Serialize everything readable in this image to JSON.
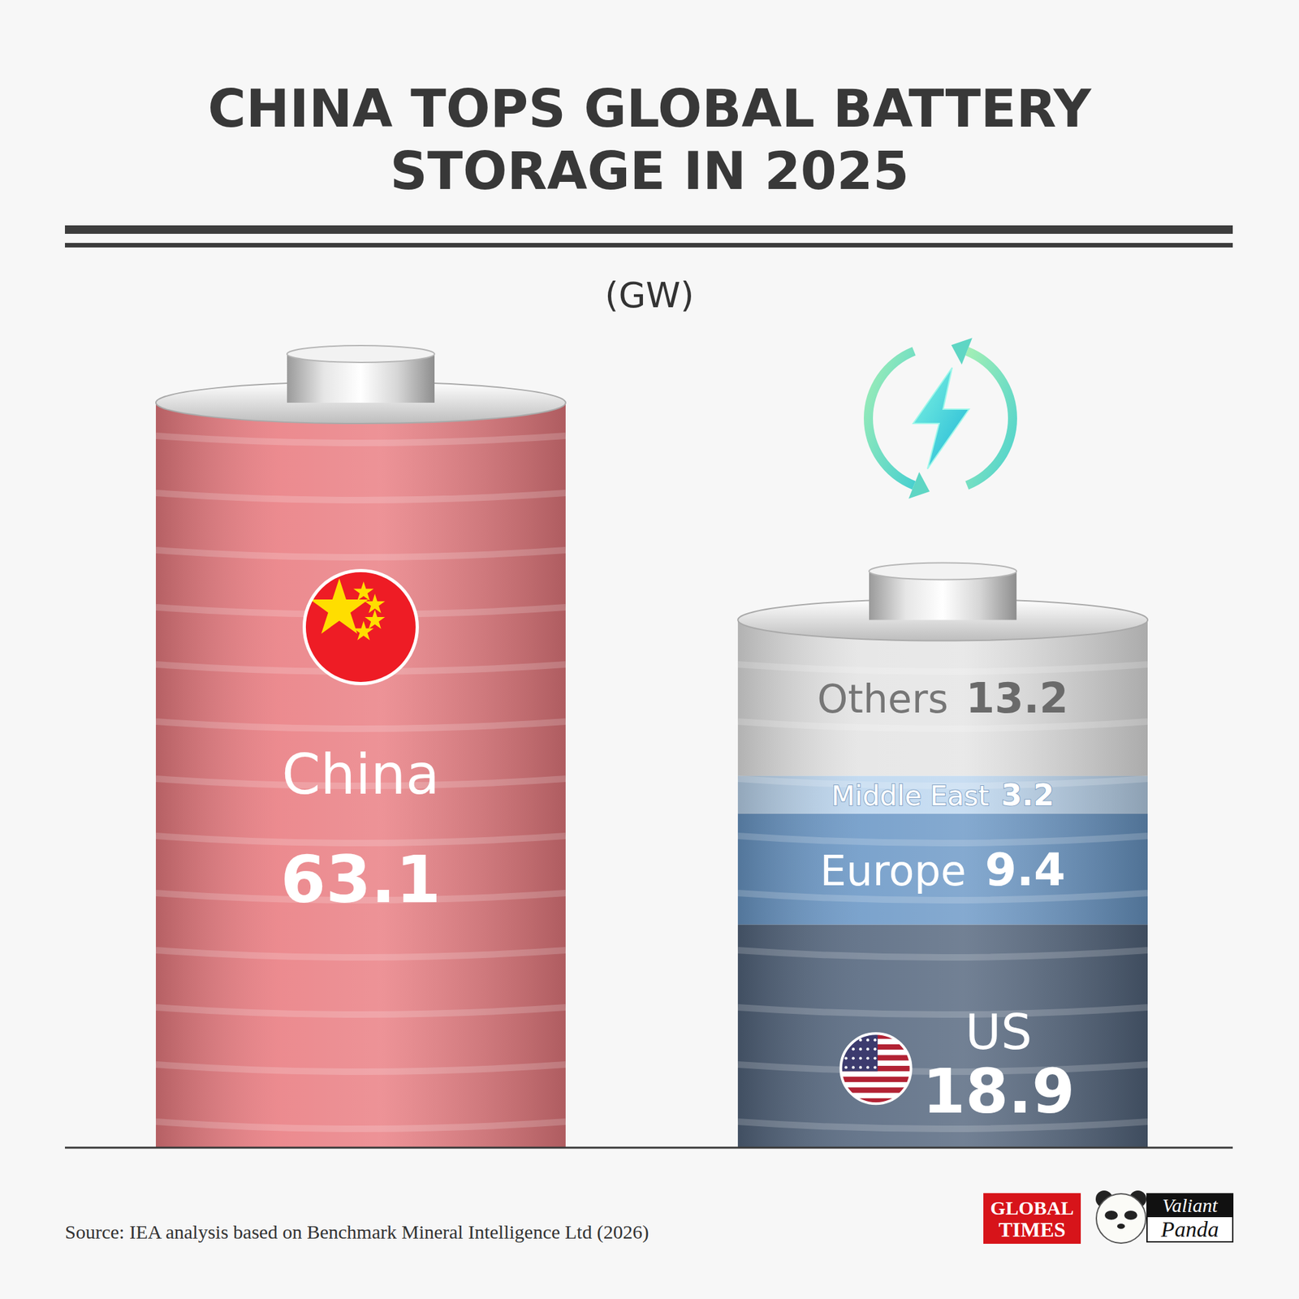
{
  "chart_data": {
    "type": "bar",
    "title": "CHINA TOPS GLOBAL BATTERY STORAGE IN 2025",
    "subtitle": "(GW)",
    "categories": [
      null,
      null
    ],
    "series": [
      {
        "name": "China",
        "color": "#e97b80",
        "values": [
          63.1,
          null
        ]
      },
      {
        "name": "US",
        "color": "#53657d",
        "values": [
          null,
          18.9
        ]
      },
      {
        "name": "Europe",
        "color": "#6a97c6",
        "values": [
          null,
          9.4
        ]
      },
      {
        "name": "Middle East",
        "color": "#bcd6ef",
        "values": [
          null,
          3.2
        ]
      },
      {
        "name": "Others",
        "color": "#e4e4e4",
        "values": [
          null,
          13.2
        ]
      }
    ],
    "stacked": true,
    "data_labels": true,
    "ylim": [
      0,
      63.1
    ],
    "tick_labels": false,
    "grid": false,
    "source": "Source: IEA analysis based on Benchmark Mineral Intelligence Ltd (2026)",
    "credits": [
      "GLOBAL TIMES",
      "Valiant Panda"
    ]
  }
}
